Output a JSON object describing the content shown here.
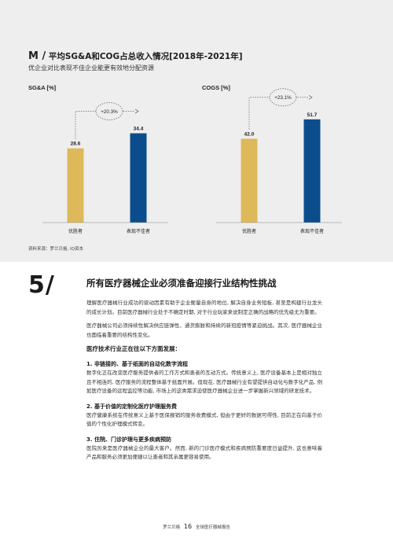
{
  "figure": {
    "letter": "M /",
    "title": "平均SG&A和COG占总收入情况[2018年-2021年]",
    "subtitle": "优企业对比表现不佳企业能更有效地分配资源",
    "source": "资料来源：罗兰贝格, IQ资本"
  },
  "chart_data": [
    {
      "type": "bar",
      "ylabel": "SG&A [%]",
      "categories": [
        "优胜者",
        "表现不佳者"
      ],
      "values": [
        28.6,
        34.4
      ],
      "value_labels": [
        "28.6",
        "34.4"
      ],
      "colors": [
        "#ddb95a",
        "#0b4d8c"
      ],
      "change_label": "+20.3%",
      "ylim": [
        0,
        50
      ]
    },
    {
      "type": "bar",
      "ylabel": "COGS [%]",
      "categories": [
        "优胜者",
        "表现不佳者"
      ],
      "values": [
        42.0,
        51.7
      ],
      "value_labels": [
        "42.0",
        "51.7"
      ],
      "colors": [
        "#ddb95a",
        "#0b4d8c"
      ],
      "change_label": "+23.1%",
      "ylim": [
        0,
        65
      ]
    }
  ],
  "section": {
    "number": "5/",
    "title": "所有医疗器械企业必须准备迎接行业结构性挑战",
    "para1": "理解医疗器械行业成功的驱动因素有助于企业衡量自身的地位, 解决自身业务短板, 甚至是构建行业龙头的成长计划。目前医疗器械行业处于不确定时期, 对于行业玩家来说制定正确的战略的优先级尤为重要。",
    "para2": "医疗器械公司必须持续性解决供应链弹性、通货膨胀和持续的新冠疫情等紧迫挑战。其次, 医疗器械企业也面临着重要的结构性变化。",
    "lead": "医疗技术行业正在往以下方面发展：",
    "items": [
      {
        "heading": "1. 非链接的、基于纸面的自动化数字流程",
        "text": "数字化正在改变医疗服务提供者的工作方式和患者的互动方式。传统意义上, 医疗设备基本上是相对独立且不相连的, 医疗服务的流程整体基于纸面开展。但现在, 医疗器械行业有望提供自动化与数字化产品, 例如医疗设备的远程监控等功能, 市场上的这类需求迫使医疗器械企业进一步掌握新兴领域的研发技术。"
      },
      {
        "heading": "2. 基于价值的定制化医疗护理服务费",
        "text": "医疗健康系统在传统意义上基于医保报销的服务收费模式, 但由于更好的数据可得性, 目前正在向基于价值的个性化护理模式转变。"
      },
      {
        "heading": "3. 住院、门诊护理与更多疾病预防",
        "text": "医院历来是医疗器械企业的最大客户。然而, 新的门诊医疗模式和疾病预防重要度日益提升, 这也意味着产品和服务必须更加便捷以让患者和其亲属更容易使用。"
      }
    ]
  },
  "footer": {
    "left": "罗兰贝格",
    "page": "16",
    "right": "全球医疗器械报告"
  }
}
